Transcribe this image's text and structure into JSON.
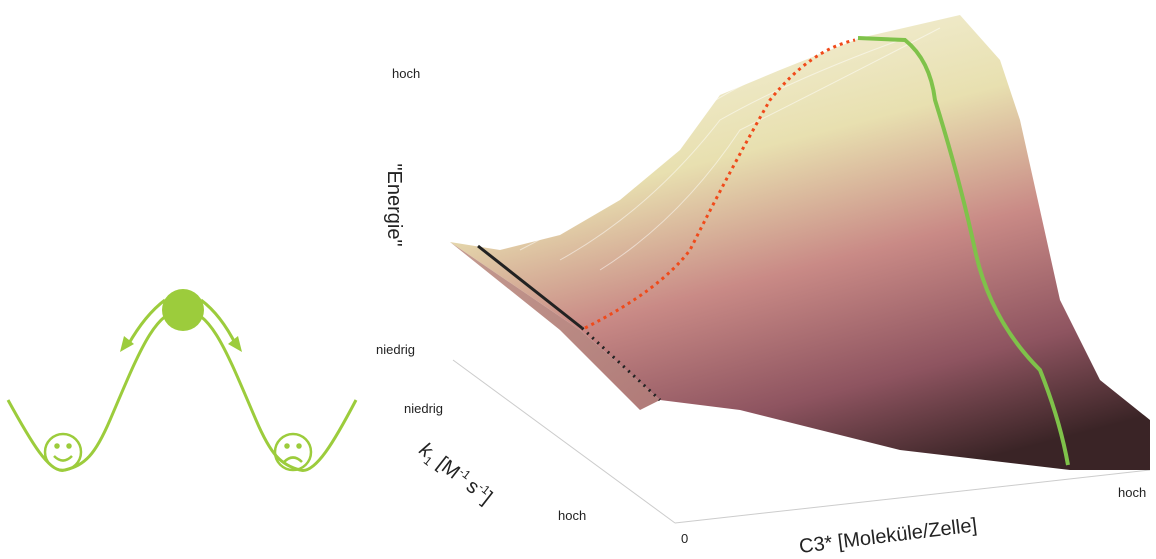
{
  "surface_plot": {
    "z_axis": {
      "label": "\"Energie\"",
      "tick_high": "hoch",
      "tick_low": "niedrig"
    },
    "k1_axis": {
      "symbol": "k",
      "subscript": "1",
      "unit_open": "[M",
      "exp_1": "-1",
      "unit_mid": "s",
      "exp_2": "-1",
      "unit_close": "]",
      "tick_low": "niedrig",
      "tick_high": "hoch"
    },
    "c3_axis": {
      "label": "C3* [Moleküle/Zelle]",
      "tick_start": "0",
      "tick_end": "hoch"
    }
  }
}
